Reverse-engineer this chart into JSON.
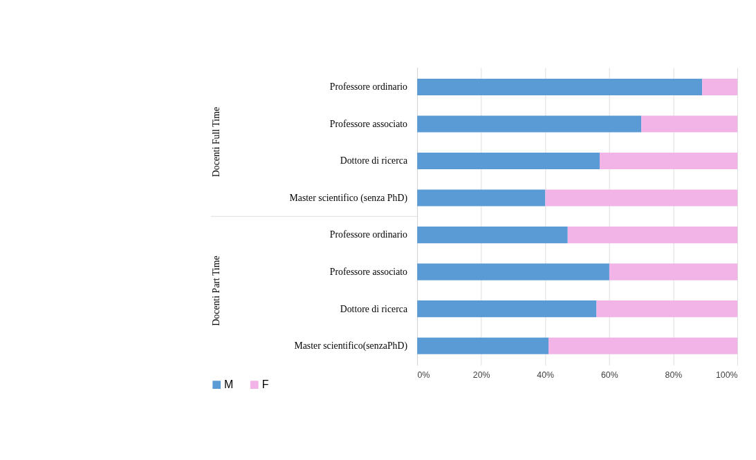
{
  "chart_data": {
    "type": "bar",
    "orientation": "horizontal",
    "stacked": true,
    "categories": [
      "Professore ordinario",
      "Professore associato",
      "Dottore di ricerca",
      "Master scientifico (senza PhD)",
      "Professore ordinario",
      "Professore associato",
      "Dottore di ricerca",
      "Master scientifico(senzaPhD)"
    ],
    "series": [
      {
        "name": "M",
        "color": "#5b9bd5",
        "values": [
          89,
          70,
          57,
          40,
          47,
          60,
          56,
          41
        ]
      },
      {
        "name": "F",
        "color": "#f2b3e6",
        "values": [
          11,
          30,
          43,
          60,
          53,
          40,
          44,
          59
        ]
      }
    ],
    "xlim": [
      0,
      100
    ],
    "xticks": [
      {
        "value": 0,
        "label": "0%"
      },
      {
        "value": 20,
        "label": "20%"
      },
      {
        "value": 40,
        "label": "40%"
      },
      {
        "value": 60,
        "label": "60%"
      },
      {
        "value": 80,
        "label": "80%"
      },
      {
        "value": 100,
        "label": "100%"
      }
    ],
    "annotations": [
      "Docenti Full Time",
      "Docenti Part Time"
    ],
    "grid": "x",
    "legend": "bottom left"
  }
}
